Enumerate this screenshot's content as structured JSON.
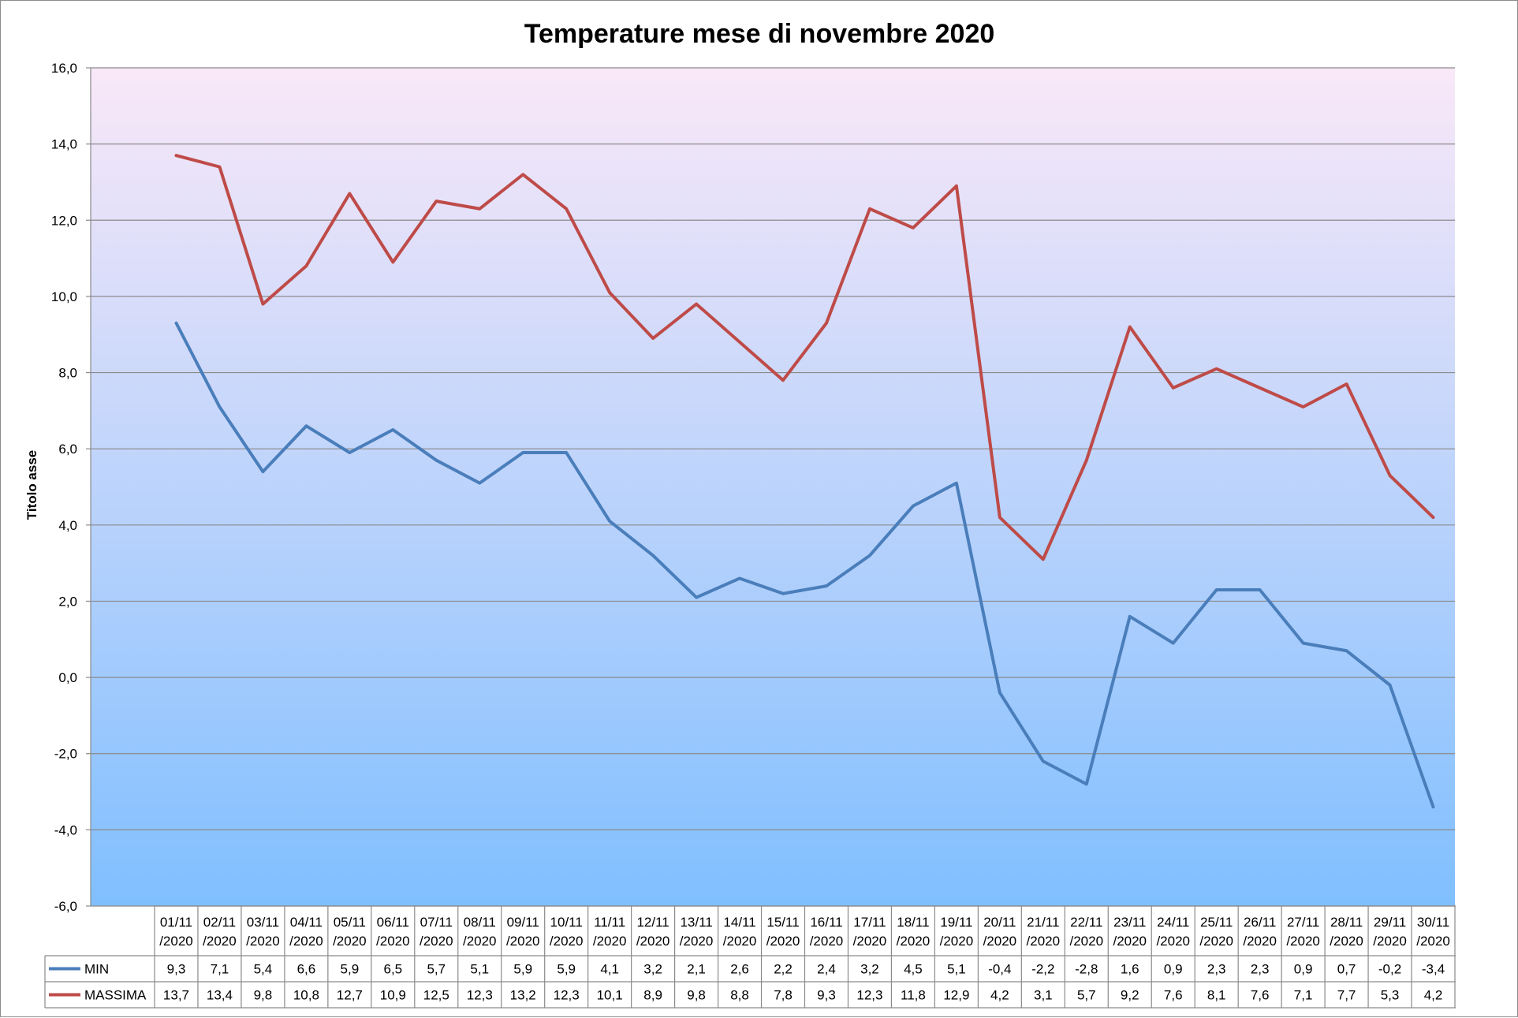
{
  "chart_data": {
    "type": "line",
    "title": "Temperature mese di novembre 2020",
    "ylabel": "Titolo asse",
    "xlabel": "",
    "ylim": [
      -6,
      16
    ],
    "ytick_step": 2,
    "ytick_labels": [
      "-6,0",
      "-4,0",
      "-2,0",
      "0,0",
      "2,0",
      "4,0",
      "6,0",
      "8,0",
      "10,0",
      "12,0",
      "14,0",
      "16,0"
    ],
    "grid": true,
    "legend": "data-table-left",
    "background_gradient": [
      "#f9e8f8",
      "#80bfff"
    ],
    "categories": [
      [
        "01/11",
        "/2020"
      ],
      [
        "02/11",
        "/2020"
      ],
      [
        "03/11",
        "/2020"
      ],
      [
        "04/11",
        "/2020"
      ],
      [
        "05/11",
        "/2020"
      ],
      [
        "06/11",
        "/2020"
      ],
      [
        "07/11",
        "/2020"
      ],
      [
        "08/11",
        "/2020"
      ],
      [
        "09/11",
        "/2020"
      ],
      [
        "10/11",
        "/2020"
      ],
      [
        "11/11",
        "/2020"
      ],
      [
        "12/11",
        "/2020"
      ],
      [
        "13/11",
        "/2020"
      ],
      [
        "14/11",
        "/2020"
      ],
      [
        "15/11",
        "/2020"
      ],
      [
        "16/11",
        "/2020"
      ],
      [
        "17/11",
        "/2020"
      ],
      [
        "18/11",
        "/2020"
      ],
      [
        "19/11",
        "/2020"
      ],
      [
        "20/11",
        "/2020"
      ],
      [
        "21/11",
        "/2020"
      ],
      [
        "22/11",
        "/2020"
      ],
      [
        "23/11",
        "/2020"
      ],
      [
        "24/11",
        "/2020"
      ],
      [
        "25/11",
        "/2020"
      ],
      [
        "26/11",
        "/2020"
      ],
      [
        "27/11",
        "/2020"
      ],
      [
        "28/11",
        "/2020"
      ],
      [
        "29/11",
        "/2020"
      ],
      [
        "30/11",
        "/2020"
      ]
    ],
    "series": [
      {
        "name": "MIN",
        "color": "#4a7ebb",
        "values": [
          9.3,
          7.1,
          5.4,
          6.6,
          5.9,
          6.5,
          5.7,
          5.1,
          5.9,
          5.9,
          4.1,
          3.2,
          2.1,
          2.6,
          2.2,
          2.4,
          3.2,
          4.5,
          5.1,
          -0.4,
          -2.2,
          -2.8,
          1.6,
          0.9,
          2.3,
          2.3,
          0.9,
          0.7,
          -0.2,
          -3.4
        ],
        "labels": [
          "9,3",
          "7,1",
          "5,4",
          "6,6",
          "5,9",
          "6,5",
          "5,7",
          "5,1",
          "5,9",
          "5,9",
          "4,1",
          "3,2",
          "2,1",
          "2,6",
          "2,2",
          "2,4",
          "3,2",
          "4,5",
          "5,1",
          "-0,4",
          "-2,2",
          "-2,8",
          "1,6",
          "0,9",
          "2,3",
          "2,3",
          "0,9",
          "0,7",
          "-0,2",
          "-3,4"
        ]
      },
      {
        "name": "MASSIMA",
        "color": "#be4b48",
        "values": [
          13.7,
          13.4,
          9.8,
          10.8,
          12.7,
          10.9,
          12.5,
          12.3,
          13.2,
          12.3,
          10.1,
          8.9,
          9.8,
          8.8,
          7.8,
          9.3,
          12.3,
          11.8,
          12.9,
          4.2,
          3.1,
          5.7,
          9.2,
          7.6,
          8.1,
          7.6,
          7.1,
          7.7,
          5.3,
          4.2
        ],
        "labels": [
          "13,7",
          "13,4",
          "9,8",
          "10,8",
          "12,7",
          "10,9",
          "12,5",
          "12,3",
          "13,2",
          "12,3",
          "10,1",
          "8,9",
          "9,8",
          "8,8",
          "7,8",
          "9,3",
          "12,3",
          "11,8",
          "12,9",
          "4,2",
          "3,1",
          "5,7",
          "9,2",
          "7,6",
          "8,1",
          "7,6",
          "7,1",
          "7,7",
          "5,3",
          "4,2"
        ]
      }
    ]
  }
}
